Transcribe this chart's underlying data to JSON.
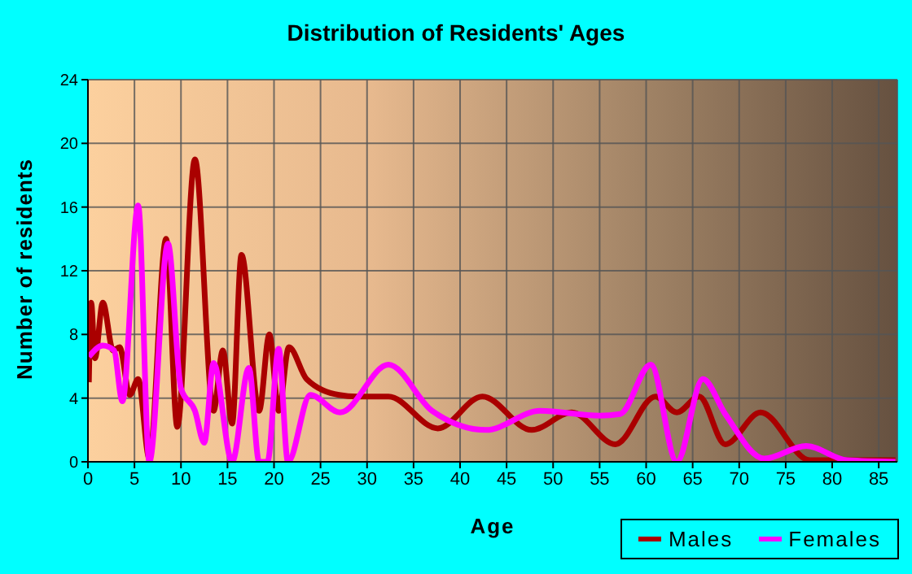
{
  "chart_data": {
    "type": "line",
    "title": "Distribution of Residents' Ages",
    "xlabel": "Age",
    "ylabel": "Number of residents",
    "xlim": [
      0,
      87
    ],
    "xticks": [
      0,
      5,
      10,
      15,
      20,
      25,
      30,
      35,
      40,
      45,
      50,
      55,
      60,
      65,
      70,
      75,
      80,
      85
    ],
    "ylim": [
      0,
      24
    ],
    "yticks": [
      0,
      4,
      8,
      12,
      16,
      20,
      24
    ],
    "grid": true,
    "legend": "bottom right",
    "marker": "none",
    "line_style": "solid",
    "series": [
      {
        "name": "Males",
        "color": "#aa0000",
        "x": [
          0.1,
          0.35,
          0.75,
          1.6,
          2.7,
          3.4,
          4.5,
          5.4,
          6.6,
          8.4,
          9.6,
          11.5,
          13.5,
          14.5,
          15.5,
          16.5,
          18.4,
          19.5,
          20.5,
          21.6,
          23.5,
          27,
          28.9,
          32.3,
          37.6,
          42.4,
          47.7,
          52,
          56.7,
          61,
          63.3,
          65.7,
          68.5,
          72.3,
          77.6,
          86.8
        ],
        "values": [
          5,
          10,
          6.5,
          10,
          7,
          7.2,
          4.2,
          5.2,
          0.2,
          14,
          2.2,
          19,
          3.2,
          7,
          2.4,
          13,
          3.2,
          8,
          3.2,
          7.2,
          5.2,
          4.2,
          4.1,
          4.1,
          2.1,
          4.1,
          2,
          3.1,
          1.1,
          4.1,
          3.1,
          4.1,
          1.1,
          3.1,
          0.1,
          0.1
        ]
      },
      {
        "name": "Females",
        "color": "#ff00ff",
        "x": [
          0.1,
          1.6,
          2.8,
          3.7,
          5.4,
          6.6,
          8.6,
          10,
          11.5,
          12.5,
          13.5,
          15.5,
          17.3,
          18.4,
          19.3,
          20.5,
          21.5,
          23.9,
          27.1,
          32.3,
          37,
          42.8,
          48.6,
          55,
          57.2,
          60.5,
          63.3,
          66.1,
          68.5,
          72.7,
          77.2,
          81.6,
          86.8
        ],
        "values": [
          6.6,
          7.3,
          7,
          3.8,
          16.1,
          0,
          13.7,
          4.6,
          3.2,
          1.2,
          6.2,
          0,
          5.9,
          0,
          0,
          7.1,
          0,
          4.2,
          3.1,
          6.1,
          3.2,
          2,
          3.2,
          2.9,
          3,
          6.1,
          0,
          5.2,
          3,
          0.2,
          1,
          0.1,
          0
        ]
      }
    ]
  }
}
